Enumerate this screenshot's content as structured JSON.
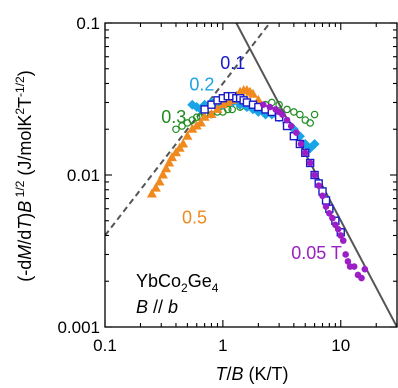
{
  "chart_data": {
    "type": "scatter",
    "x_scale": "log",
    "y_scale": "log",
    "xlim": [
      0.1,
      30
    ],
    "ylim": [
      0.001,
      0.1
    ],
    "x_ticks": [
      {
        "value": 0.1,
        "label": "0.1"
      },
      {
        "value": 1,
        "label": "1"
      },
      {
        "value": 10,
        "label": "10"
      }
    ],
    "y_ticks": [
      {
        "value": 0.001,
        "label": "0.001"
      },
      {
        "value": 0.01,
        "label": "0.01"
      },
      {
        "value": 0.1,
        "label": "0.1"
      }
    ],
    "xlabel": {
      "italic": "T",
      "mid": "/",
      "italic2": "B",
      "rest": " (K/T)"
    },
    "ylabel": {
      "p1": "(-d",
      "i1": "M",
      "p2": "/d",
      "i2": "T",
      "p3": ")",
      "i3": "B",
      "sup1": " 1/2",
      "p4": "  (J/molK",
      "sup2": "2",
      "p5": "T",
      "sup3": "-1/2",
      "p6": ")"
    },
    "sample_label": {
      "main": "YbCo",
      "sub1": "2",
      "mid": "Ge",
      "sub2": "4"
    },
    "field_label": {
      "i1": "B",
      "mid": " // ",
      "i2": "b"
    },
    "series": [
      {
        "name": "0.05 T",
        "color": "#9B1FC4",
        "marker": "circle-filled",
        "x": [
          2.2,
          2.5,
          2.8,
          3.0,
          3.2,
          3.5,
          3.8,
          4.2,
          4.6,
          5.0,
          5.5,
          6.0,
          6.5,
          7.0,
          7.5,
          8.0,
          8.5,
          9.0,
          9.5,
          10.0,
          10.5,
          11.0,
          11.5,
          12.0,
          13.0,
          14.0,
          15.0,
          16.0
        ],
        "y": [
          0.029,
          0.028,
          0.027,
          0.026,
          0.025,
          0.023,
          0.021,
          0.019,
          0.016,
          0.014,
          0.012,
          0.01,
          0.0085,
          0.0073,
          0.0062,
          0.0056,
          0.0052,
          0.0047,
          0.0044,
          0.004,
          0.0037,
          0.003,
          0.0027,
          0.0025,
          0.0025,
          0.0022,
          0.0021,
          0.0024
        ]
      },
      {
        "name": "0.1",
        "color": "#1A1AC8",
        "marker": "square-open",
        "x": [
          0.7,
          0.8,
          0.9,
          1.0,
          1.1,
          1.2,
          1.3,
          1.4,
          1.5,
          1.6,
          1.8,
          2.0,
          2.3,
          2.6,
          3.0,
          3.5,
          4.0,
          4.5,
          5.0,
          5.5,
          6.0,
          6.5,
          7.0,
          7.5,
          8.0,
          9.0,
          10.0
        ],
        "y": [
          0.027,
          0.029,
          0.031,
          0.032,
          0.033,
          0.033,
          0.032,
          0.032,
          0.031,
          0.03,
          0.029,
          0.028,
          0.027,
          0.026,
          0.024,
          0.021,
          0.018,
          0.016,
          0.014,
          0.012,
          0.01,
          0.0088,
          0.0078,
          0.0068,
          0.006,
          0.005,
          0.0042
        ]
      },
      {
        "name": "0.2",
        "color": "#19A4E6",
        "marker": "diamond-filled",
        "x": [
          0.55,
          0.6,
          0.65,
          0.7,
          0.8,
          0.9,
          1.0,
          1.2,
          1.4,
          1.6,
          1.8,
          2.0,
          2.3,
          2.6,
          3.0,
          3.5,
          4.0,
          4.5,
          5.0,
          5.5,
          6.0
        ],
        "y": [
          0.029,
          0.028,
          0.027,
          0.029,
          0.03,
          0.028,
          0.029,
          0.03,
          0.029,
          0.028,
          0.027,
          0.026,
          0.025,
          0.025,
          0.024,
          0.022,
          0.02,
          0.018,
          0.016,
          0.015,
          0.016
        ]
      },
      {
        "name": "0.3",
        "color": "#1E8C1E",
        "marker": "circle-open",
        "x": [
          0.4,
          0.45,
          0.5,
          0.55,
          0.6,
          0.65,
          0.7,
          0.8,
          0.9,
          1.0,
          1.1,
          1.2,
          1.4,
          1.6,
          1.8,
          2.0,
          2.3,
          2.6,
          3.0,
          3.5,
          4.0,
          4.5,
          5.0,
          5.5,
          6.0
        ],
        "y": [
          0.02,
          0.021,
          0.022,
          0.023,
          0.024,
          0.024,
          0.025,
          0.025,
          0.026,
          0.026,
          0.027,
          0.027,
          0.028,
          0.028,
          0.028,
          0.028,
          0.029,
          0.03,
          0.029,
          0.027,
          0.026,
          0.025,
          0.023,
          0.022,
          0.025
        ]
      },
      {
        "name": "0.5",
        "color": "#F08A1E",
        "marker": "triangle-filled",
        "x": [
          0.25,
          0.27,
          0.29,
          0.31,
          0.33,
          0.35,
          0.37,
          0.4,
          0.43,
          0.46,
          0.5,
          0.55,
          0.6,
          0.65,
          0.7,
          0.8,
          0.9,
          1.0,
          1.1,
          1.2,
          1.3,
          1.4,
          1.5,
          1.6,
          1.7,
          1.8,
          2.0
        ],
        "y": [
          0.0075,
          0.0082,
          0.009,
          0.01,
          0.011,
          0.012,
          0.013,
          0.014,
          0.015,
          0.016,
          0.018,
          0.02,
          0.021,
          0.022,
          0.024,
          0.025,
          0.027,
          0.029,
          0.03,
          0.031,
          0.033,
          0.035,
          0.036,
          0.036,
          0.035,
          0.034,
          0.031
        ]
      }
    ],
    "lines": [
      {
        "style": "dashed",
        "color": "#555555",
        "x": [
          0.1,
          3.0
        ],
        "y": [
          0.004,
          0.12
        ]
      },
      {
        "style": "solid",
        "color": "#555555",
        "x": [
          1.3,
          30
        ],
        "y": [
          0.1,
          0.001
        ]
      }
    ],
    "annotations": [
      {
        "text": "0.1",
        "color": "#1A1AC8",
        "x": 0.95,
        "y": 0.05
      },
      {
        "text": "0.2",
        "color": "#19A4E6",
        "x": 0.52,
        "y": 0.036
      },
      {
        "text": "0.3",
        "color": "#1E8C1E",
        "x": 0.3,
        "y": 0.022
      },
      {
        "text": "0.5",
        "color": "#F08A1E",
        "x": 0.45,
        "y": 0.0048
      },
      {
        "text": "0.05 T",
        "color": "#9B1FC4",
        "x": 3.8,
        "y": 0.0028
      }
    ]
  }
}
